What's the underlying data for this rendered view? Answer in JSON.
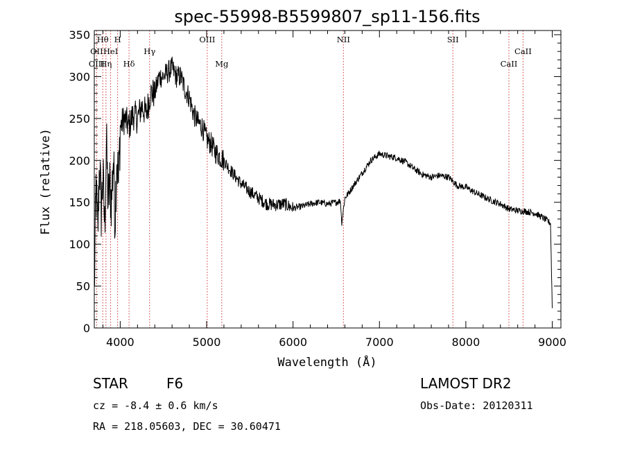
{
  "chart_data": {
    "type": "line",
    "title": "spec-55998-B5599807_sp11-156.fits",
    "xlabel": "Wavelength (Å)",
    "ylabel": "Flux (relative)",
    "xlim": [
      3700,
      9100
    ],
    "ylim": [
      0,
      355
    ],
    "x_ticks": [
      4000,
      5000,
      6000,
      7000,
      8000,
      9000
    ],
    "y_ticks": [
      0,
      50,
      100,
      150,
      200,
      250,
      300,
      350
    ],
    "grid": false,
    "series": [
      {
        "x": [
          3700,
          3720,
          3740,
          3760,
          3780,
          3800,
          3820,
          3840,
          3860,
          3880,
          3900,
          3920,
          3940,
          3960,
          3980,
          4000,
          4050,
          4100,
          4150,
          4200,
          4250,
          4300,
          4350,
          4400,
          4450,
          4500,
          4550,
          4600,
          4650,
          4700,
          4750,
          4800,
          4850,
          4900,
          4950,
          5000,
          5050,
          5100,
          5150,
          5200,
          5250,
          5300,
          5400,
          5500,
          5600,
          5700,
          5800,
          5900,
          6000,
          6100,
          6200,
          6300,
          6400,
          6500,
          6550,
          6563,
          6600,
          6650,
          6700,
          6800,
          6900,
          7000,
          7100,
          7200,
          7300,
          7400,
          7500,
          7600,
          7700,
          7800,
          7850,
          7900,
          8000,
          8100,
          8200,
          8300,
          8400,
          8500,
          8600,
          8700,
          8800,
          8900,
          8980,
          9000
        ],
        "y": [
          40,
          170,
          110,
          200,
          140,
          180,
          120,
          220,
          150,
          170,
          150,
          205,
          130,
          210,
          170,
          240,
          250,
          240,
          255,
          250,
          265,
          255,
          280,
          280,
          300,
          300,
          305,
          310,
          300,
          300,
          285,
          275,
          255,
          245,
          240,
          225,
          220,
          210,
          205,
          200,
          192,
          185,
          172,
          163,
          155,
          148,
          147,
          148,
          143,
          145,
          148,
          150,
          148,
          150,
          152,
          125,
          155,
          162,
          170,
          185,
          200,
          208,
          205,
          203,
          198,
          190,
          183,
          180,
          182,
          180,
          175,
          170,
          168,
          162,
          157,
          152,
          148,
          142,
          140,
          139,
          137,
          131,
          125,
          25
        ]
      }
    ],
    "spectral_lines": [
      {
        "label": "Hθ",
        "x": 3798,
        "row": 1
      },
      {
        "label": "H",
        "x": 3970,
        "row": 1
      },
      {
        "label": "OIII",
        "x": 5007,
        "row": 1
      },
      {
        "label": "NII",
        "x": 6583,
        "row": 1
      },
      {
        "label": "SII",
        "x": 7850,
        "row": 1
      },
      {
        "label": "OII",
        "x": 3727,
        "row": 2
      },
      {
        "label": "HeI",
        "x": 3889,
        "row": 2
      },
      {
        "label": "Hγ",
        "x": 4340,
        "row": 2
      },
      {
        "label": "CaII",
        "x": 8662,
        "row": 2
      },
      {
        "label": "OIII",
        "x": 3727,
        "row": 3
      },
      {
        "label": "Hη",
        "x": 3835,
        "row": 3
      },
      {
        "label": "Hδ",
        "x": 4102,
        "row": 3
      },
      {
        "label": "Mg",
        "x": 5175,
        "row": 3
      },
      {
        "label": "CaII",
        "x": 8498,
        "row": 3
      }
    ],
    "line_color": "#cc3333"
  },
  "footer": {
    "object_class": "STAR",
    "subclass": "F6",
    "survey": "LAMOST DR2",
    "redshift": "cz = -8.4 ± 0.6 km/s",
    "obs_date": "Obs-Date: 20120311",
    "coords": "RA = 218.05603, DEC =  30.60471"
  }
}
